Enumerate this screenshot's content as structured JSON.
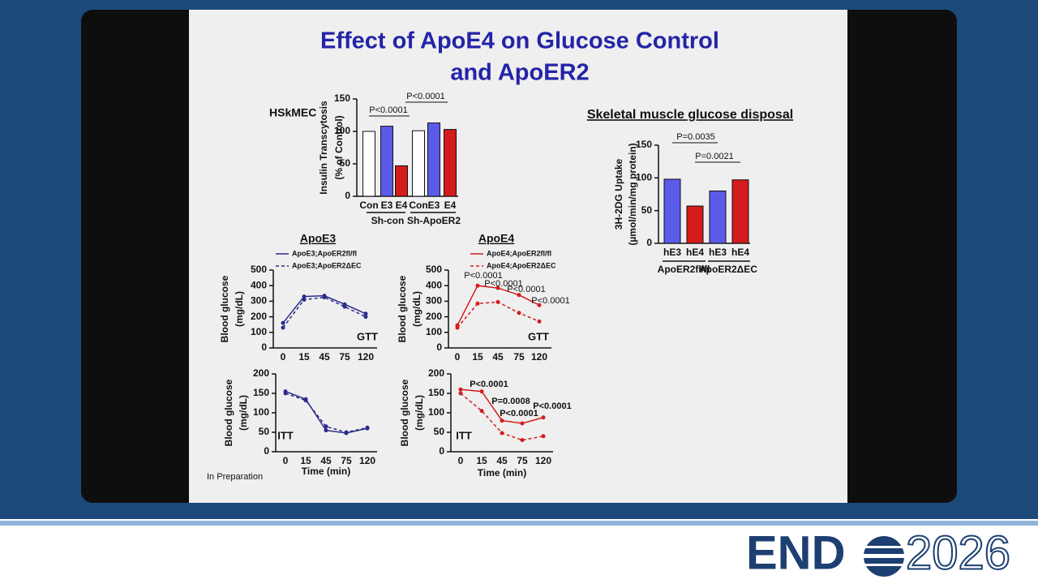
{
  "title": [
    "Effect of ApoE4 on Glucose Control",
    "and ApoER2"
  ],
  "footnote": "In Preparation",
  "logo": {
    "left": "END",
    "right": "2026"
  },
  "chart_data": [
    {
      "type": "bar",
      "title": "HSkMEC",
      "y_label": [
        "Insulin Transcytosis",
        "(% of Control)"
      ],
      "categories": [
        "Con",
        "E3",
        "E4",
        "Con",
        "E3",
        "E4"
      ],
      "groups": [
        "Sh-con",
        "Sh-ApoER2"
      ],
      "values": [
        100,
        108,
        47,
        101,
        113,
        103
      ],
      "colors": [
        "#ffffff",
        "#5b5bea",
        "#d41c1c",
        "#ffffff",
        "#5b5bea",
        "#d41c1c"
      ],
      "ylim": [
        0,
        150
      ],
      "yticks": [
        0,
        50,
        100,
        150
      ],
      "annotations": [
        "P<0.0001",
        "P<0.0001"
      ]
    },
    {
      "type": "bar",
      "title": "Skeletal muscle glucose disposal",
      "y_label": [
        "3H-2DG Uptake",
        "(µmol/min/mg protein)"
      ],
      "categories": [
        "hE3",
        "hE4",
        "hE3",
        "hE4"
      ],
      "groups": [
        "ApoER2fl/fl",
        "ApoER2ΔEC"
      ],
      "values": [
        98,
        57,
        80,
        97
      ],
      "colors": [
        "#5b5bea",
        "#d41c1c",
        "#5b5bea",
        "#d41c1c"
      ],
      "ylim": [
        0,
        150
      ],
      "yticks": [
        0,
        50,
        100,
        150
      ],
      "annotations": [
        "P=0.0035",
        "P=0.0021"
      ]
    },
    {
      "type": "line",
      "title": "ApoE3",
      "y_label": [
        "Blood glucose",
        "(mg/dL)"
      ],
      "tag": "GTT",
      "categories": [
        "0",
        "15",
        "45",
        "75",
        "120"
      ],
      "series": [
        {
          "name": "ApoE3;ApoER2fl/fl",
          "color": "#2b2b8c",
          "dash": false,
          "values": [
            160,
            330,
            335,
            280,
            220
          ]
        },
        {
          "name": "ApoE3;ApoER2ΔEC",
          "color": "#2b2b8c",
          "dash": true,
          "values": [
            130,
            310,
            325,
            265,
            200
          ]
        }
      ],
      "ylim": [
        0,
        500
      ],
      "yticks": [
        0,
        100,
        200,
        300,
        400,
        500
      ]
    },
    {
      "type": "line",
      "title": "ApoE4",
      "y_label": [
        "Blood glucose",
        "(mg/dL)"
      ],
      "tag": "GTT",
      "categories": [
        "0",
        "15",
        "45",
        "75",
        "120"
      ],
      "series": [
        {
          "name": "ApoE4;ApoER2fl/fl",
          "color": "#d41c1c",
          "dash": false,
          "values": [
            145,
            400,
            385,
            340,
            275
          ]
        },
        {
          "name": "ApoE4;ApoER2ΔEC",
          "color": "#d41c1c",
          "dash": true,
          "values": [
            130,
            285,
            295,
            225,
            170
          ]
        }
      ],
      "ylim": [
        0,
        500
      ],
      "yticks": [
        0,
        100,
        200,
        300,
        400,
        500
      ],
      "annotations": [
        "P<0.0001",
        "P<0.0001",
        "P<0.0001",
        "P<0.0001"
      ]
    },
    {
      "type": "line",
      "y_label": [
        "Blood glucose",
        "(mg/dL)"
      ],
      "tag": "ITT",
      "x_label": "Time (min)",
      "categories": [
        "0",
        "15",
        "45",
        "75",
        "120"
      ],
      "series": [
        {
          "color": "#2b2b8c",
          "dash": false,
          "values": [
            155,
            135,
            55,
            48,
            60
          ]
        },
        {
          "color": "#2b2b8c",
          "dash": true,
          "values": [
            150,
            132,
            65,
            50,
            62
          ]
        }
      ],
      "ylim": [
        0,
        200
      ],
      "yticks": [
        0,
        50,
        100,
        150,
        200
      ]
    },
    {
      "type": "line",
      "y_label": [
        "Blood glucose",
        "(mg/dL)"
      ],
      "tag": "ITT",
      "x_label": "Time (min)",
      "categories": [
        "0",
        "15",
        "45",
        "75",
        "120"
      ],
      "series": [
        {
          "color": "#d41c1c",
          "dash": false,
          "values": [
            160,
            155,
            80,
            73,
            88
          ]
        },
        {
          "color": "#d41c1c",
          "dash": true,
          "values": [
            150,
            105,
            48,
            30,
            40
          ]
        }
      ],
      "ylim": [
        0,
        200
      ],
      "yticks": [
        0,
        50,
        100,
        150,
        200
      ],
      "annotations": [
        "P<0.0001",
        "P=0.0008",
        "P<0.0001",
        "P<0.0001"
      ]
    }
  ]
}
